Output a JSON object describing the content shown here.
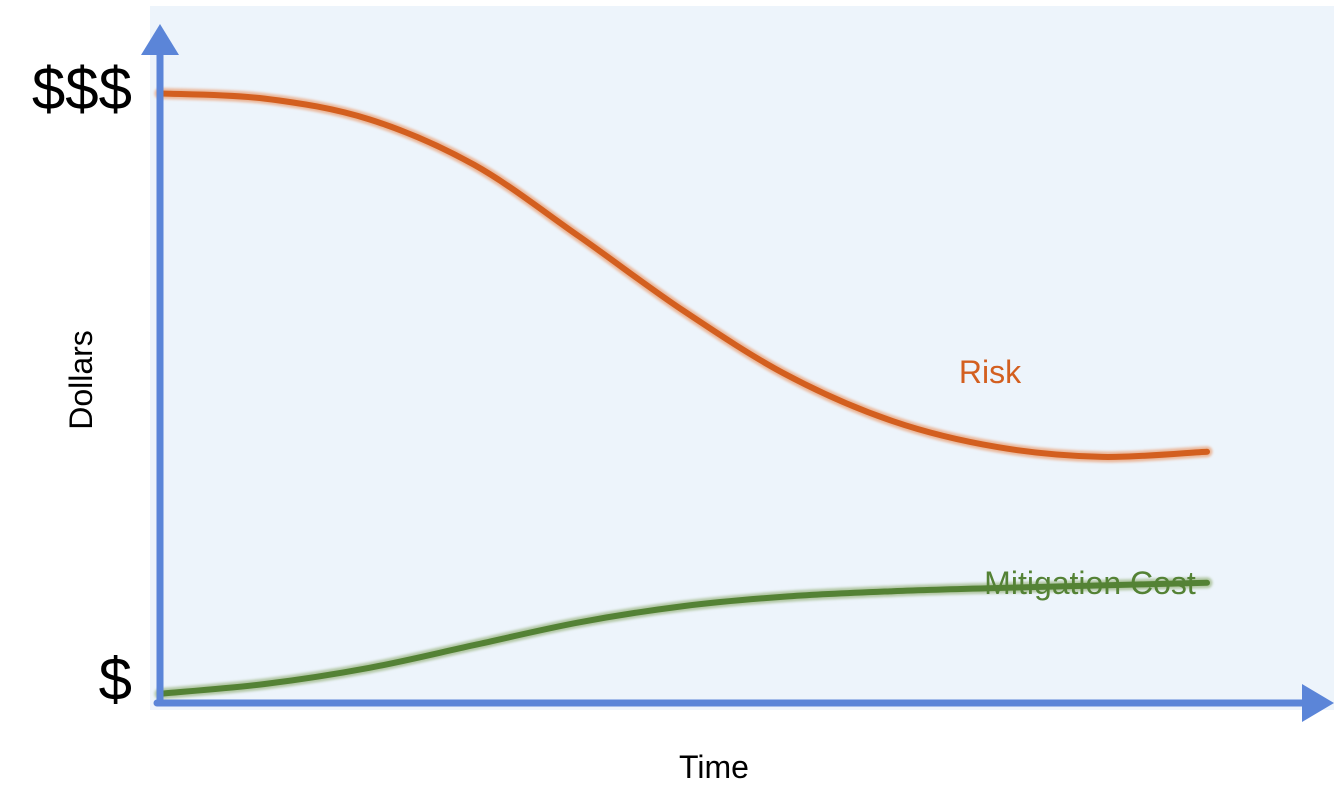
{
  "chart_data": {
    "type": "line",
    "xlabel": "Time",
    "ylabel": "Dollars",
    "xlim": [
      0,
      10
    ],
    "ylim": [
      0,
      10
    ],
    "y_ticks": [
      {
        "value": 0.3,
        "label": "$"
      },
      {
        "value": 9.4,
        "label": "$$$"
      }
    ],
    "x": [
      0,
      1,
      2,
      3,
      4,
      5,
      6,
      7,
      8,
      9,
      10
    ],
    "series": [
      {
        "name": "Risk",
        "color": "#d35f1f",
        "values": [
          9.3,
          9.22,
          8.9,
          8.2,
          7.1,
          5.95,
          4.95,
          4.25,
          3.85,
          3.7,
          3.78
        ]
      },
      {
        "name": "Mitigation Cost",
        "color": "#548235",
        "values": [
          0.05,
          0.2,
          0.45,
          0.8,
          1.15,
          1.4,
          1.55,
          1.63,
          1.68,
          1.72,
          1.76
        ]
      }
    ],
    "axis_color": "#5b85d8",
    "plot_background": "#edf4fb",
    "grid": false,
    "legend": "none"
  }
}
